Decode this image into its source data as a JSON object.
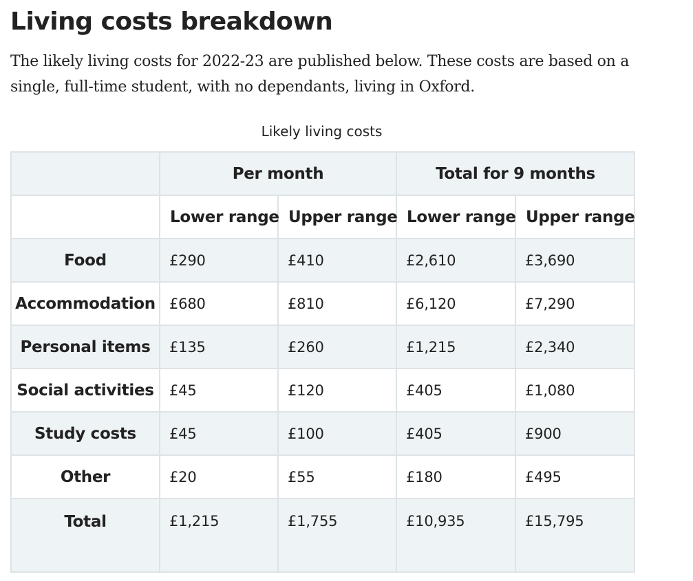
{
  "heading": "Living costs breakdown",
  "intro": "The likely living costs for 2022-23 are published below. These costs are based on a single, full-time student, with no dependants, living in Oxford.",
  "table": {
    "caption": "Likely living costs",
    "groups": [
      "Per month",
      "Total for 9 months"
    ],
    "subheaders": [
      "Lower range",
      "Upper range",
      "Lower range",
      "Upper range"
    ],
    "rows": [
      {
        "label": "Food",
        "values": [
          "£290",
          "£410",
          "£2,610",
          "£3,690"
        ]
      },
      {
        "label": "Accommodation",
        "values": [
          "£680",
          "£810",
          "£6,120",
          "£7,290"
        ]
      },
      {
        "label": "Personal items",
        "values": [
          "£135",
          "£260",
          "£1,215",
          "£2,340"
        ]
      },
      {
        "label": "Social activities",
        "values": [
          "£45",
          "£120",
          "£405",
          "£1,080"
        ]
      },
      {
        "label": "Study costs",
        "values": [
          "£45",
          "£100",
          "£405",
          "£900"
        ]
      },
      {
        "label": "Other",
        "values": [
          "£20",
          "£55",
          "£180",
          "£495"
        ]
      },
      {
        "label": "Total",
        "values": [
          "£1,215",
          "£1,755",
          "£10,935",
          "£15,795"
        ]
      }
    ]
  },
  "colors": {
    "text": "#222222",
    "row_shade": "#eef3f5",
    "border": "#dde3e6"
  }
}
